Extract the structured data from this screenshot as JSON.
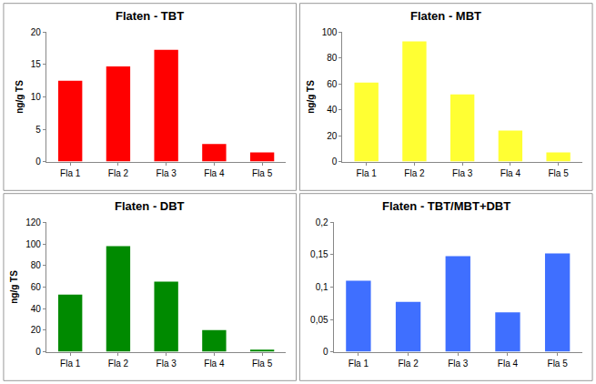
{
  "chart_data": [
    {
      "type": "bar",
      "title": "Flaten - TBT",
      "y_label": "ng/g TS",
      "categories": [
        "Fla 1",
        "Fla 2",
        "Fla 3",
        "Fla 4",
        "Fla 5"
      ],
      "values": [
        12.5,
        14.7,
        17.3,
        2.7,
        1.4
      ],
      "color": "#ff0000",
      "ylim": [
        0,
        20
      ],
      "yticks": [
        0,
        5,
        10,
        15,
        20
      ],
      "grid": false
    },
    {
      "type": "bar",
      "title": "Flaten - MBT",
      "y_label": "ng/g TS",
      "categories": [
        "Fla 1",
        "Fla 2",
        "Fla 3",
        "Fla 4",
        "Fla 5"
      ],
      "values": [
        61,
        93,
        52,
        24,
        7
      ],
      "color": "#ffff33",
      "ylim": [
        0,
        100
      ],
      "yticks": [
        0,
        20,
        40,
        60,
        80,
        100
      ],
      "grid": false
    },
    {
      "type": "bar",
      "title": "Flaten - DBT",
      "y_label": "ng/g TS",
      "categories": [
        "Fla 1",
        "Fla 2",
        "Fla 3",
        "Fla 4",
        "Fla 5"
      ],
      "values": [
        53,
        98,
        65,
        20,
        2
      ],
      "color": "#008a00",
      "ylim": [
        0,
        120
      ],
      "yticks": [
        0,
        20,
        40,
        60,
        80,
        100,
        120
      ],
      "grid": false
    },
    {
      "type": "bar",
      "title": "Flaten - TBT/MBT+DBT",
      "categories": [
        "Fla 1",
        "Fla 2",
        "Fla 3",
        "Fla 4",
        "Fla 5"
      ],
      "values": [
        0.11,
        0.077,
        0.148,
        0.061,
        0.152
      ],
      "color": "#3f6fff",
      "ylim": [
        0,
        0.2
      ],
      "yticks": [
        0,
        {
          "value": 0.05,
          "label": "0,05"
        },
        {
          "value": 0.1,
          "label": "0,1"
        },
        {
          "value": 0.15,
          "label": "0,15"
        },
        {
          "value": 0.2,
          "label": "0,2"
        }
      ],
      "grid": false
    }
  ]
}
